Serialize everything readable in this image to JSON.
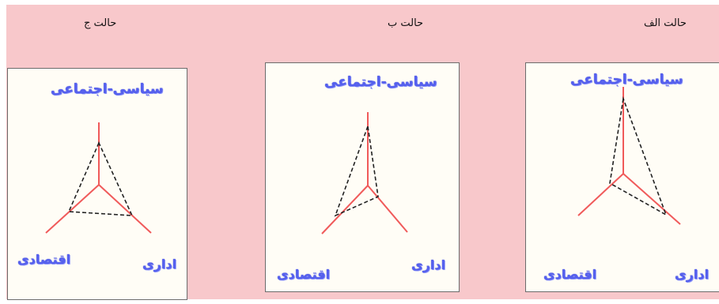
{
  "panels": [
    {
      "title": "حالت ج",
      "top_label": "سیاسی-اجتماعی",
      "left_label": "اقتصادی",
      "right_label": "اداری"
    },
    {
      "title": "حالت ب",
      "top_label": "سیاسی-اجتماعی",
      "left_label": "اقتصادی",
      "right_label": "اداری"
    },
    {
      "title": "حالت الف",
      "top_label": "سیاسی-اجتماعی",
      "left_label": "اقتصادی",
      "right_label": "اداری"
    }
  ],
  "colors": {
    "background": "#f8c8cb",
    "panel": "#fffdf6",
    "axis": "#f05a5a",
    "dashed": "#222222",
    "label": "#5560ee"
  }
}
